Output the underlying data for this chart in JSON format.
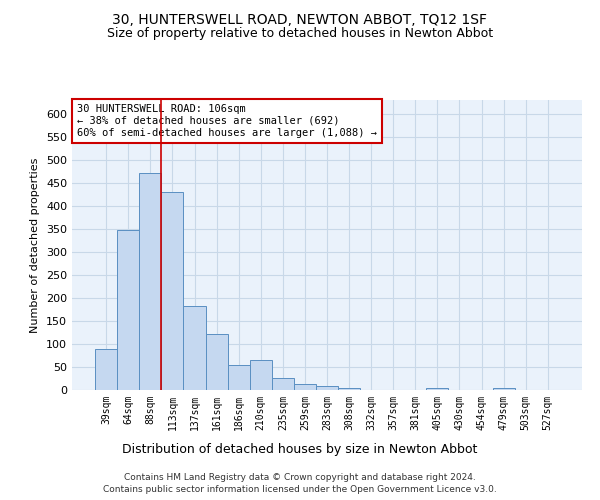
{
  "title": "30, HUNTERSWELL ROAD, NEWTON ABBOT, TQ12 1SF",
  "subtitle": "Size of property relative to detached houses in Newton Abbot",
  "xlabel": "Distribution of detached houses by size in Newton Abbot",
  "ylabel": "Number of detached properties",
  "categories": [
    "39sqm",
    "64sqm",
    "88sqm",
    "113sqm",
    "137sqm",
    "161sqm",
    "186sqm",
    "210sqm",
    "235sqm",
    "259sqm",
    "283sqm",
    "308sqm",
    "332sqm",
    "357sqm",
    "381sqm",
    "405sqm",
    "430sqm",
    "454sqm",
    "479sqm",
    "503sqm",
    "527sqm"
  ],
  "values": [
    88,
    348,
    472,
    430,
    183,
    122,
    55,
    65,
    25,
    13,
    8,
    5,
    0,
    0,
    0,
    5,
    0,
    0,
    5,
    0,
    0
  ],
  "bar_color": "#c5d8f0",
  "bar_edge_color": "#5a8fc2",
  "vline_x": 2.5,
  "vline_color": "#cc0000",
  "ylim": [
    0,
    630
  ],
  "yticks": [
    0,
    50,
    100,
    150,
    200,
    250,
    300,
    350,
    400,
    450,
    500,
    550,
    600
  ],
  "annotation_text": "30 HUNTERSWELL ROAD: 106sqm\n← 38% of detached houses are smaller (692)\n60% of semi-detached houses are larger (1,088) →",
  "annotation_box_color": "#ffffff",
  "annotation_box_edge_color": "#cc0000",
  "grid_color": "#c8d8e8",
  "background_color": "#eaf2fb",
  "footer_line1": "Contains HM Land Registry data © Crown copyright and database right 2024.",
  "footer_line2": "Contains public sector information licensed under the Open Government Licence v3.0."
}
